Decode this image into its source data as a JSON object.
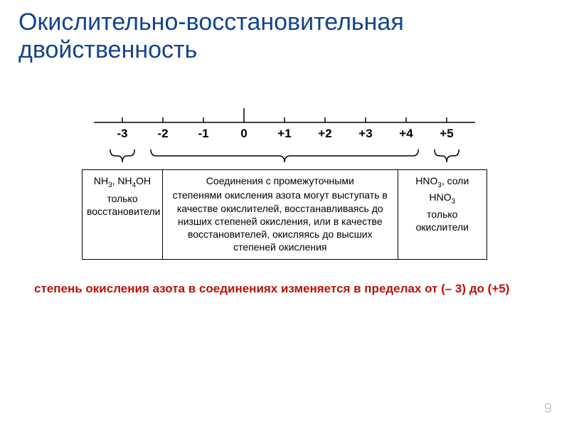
{
  "title": "Окислительно-восстановительная двойственность",
  "colors": {
    "title": "#13448c",
    "footnote": "#b91106",
    "text": "#000000",
    "border": "#000000",
    "pagenum": "#c9c9c9",
    "background": "#ffffff"
  },
  "numberline": {
    "values": [
      "-3",
      "-2",
      "-1",
      "0",
      "+1",
      "+2",
      "+3",
      "+4",
      "+5"
    ],
    "positions_pct": [
      10,
      20,
      30,
      40,
      50,
      60,
      70,
      80,
      90
    ],
    "tick_font_size": 17,
    "tick_font_weight": 700,
    "main_tick_height": 18,
    "minor_tick_height": 7,
    "center_tick_height": 22,
    "line_stroke_width": 1.5
  },
  "braces": [
    {
      "start_pct": 7,
      "end_pct": 13,
      "stroke_width": 1.5
    },
    {
      "start_pct": 17,
      "end_pct": 83,
      "stroke_width": 1.5
    },
    {
      "start_pct": 87,
      "end_pct": 93,
      "stroke_width": 1.5
    }
  ],
  "boxes": [
    {
      "width_pct": 20,
      "header_html": "NH<sub>3</sub>, NH<sub>4</sub>OH",
      "body": "только восстановители"
    },
    {
      "width_pct": 58,
      "header_html": "Соединения с промежуточными",
      "body": "степенями окисления азота могут выступать в качестве окислителей, восстанавливаясь до низших степеней окисления, или в качестве восстановителей, окисляясь до высших степеней окисления"
    },
    {
      "width_pct": 22,
      "header_html": "HNO<sub>3</sub>, соли HNO<sub>3</sub>",
      "body": "только окислители"
    }
  ],
  "box_font_size": 14,
  "footnote": "степень окисления азота в соединениях изменяется в пределах от (– 3) до (+5)",
  "footnote_font_size": 17,
  "page_number": "9"
}
